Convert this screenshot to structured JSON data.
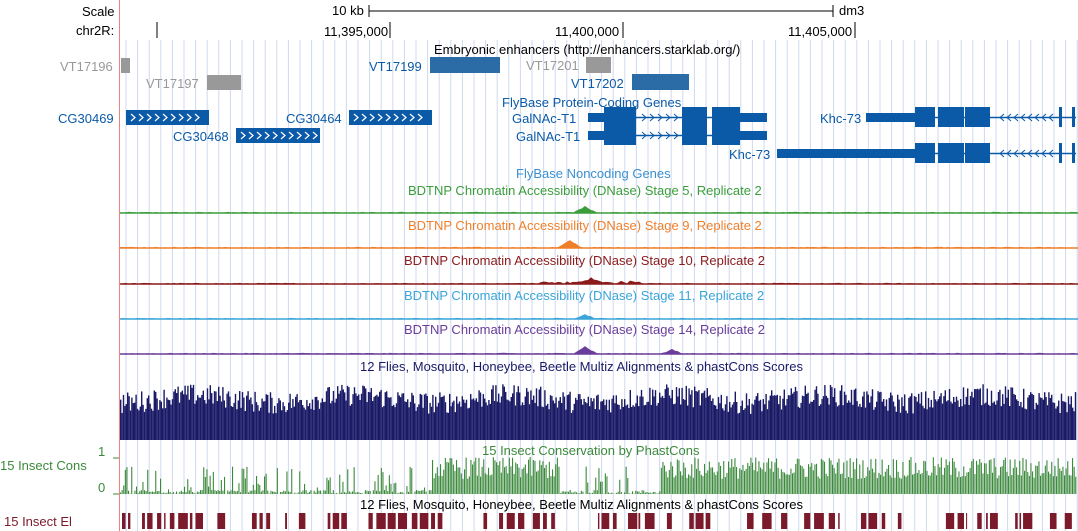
{
  "header": {
    "scale_label": "Scale",
    "chrom_label": "chr2R:",
    "scale_bar_text": "10 kb",
    "assembly": "dm3",
    "positions": [
      "11,395,000",
      "11,400,000",
      "11,405,000"
    ]
  },
  "tracks": {
    "enhancers": {
      "title": "Embryonic enhancers (http://enhancers.starklab.org/)",
      "items": [
        "VT17196",
        "VT17197",
        "VT17199",
        "VT17201",
        "VT17202"
      ]
    },
    "coding_genes": {
      "title": "FlyBase Protein-Coding Genes",
      "items": [
        "CG30469",
        "CG30468",
        "CG30464",
        "GalNAc-T1",
        "GalNAc-T1",
        "Khc-73",
        "Khc-73"
      ]
    },
    "noncoding_genes": {
      "title": "FlyBase Noncoding Genes"
    },
    "dnase": [
      {
        "title": "BDTNP Chromatin Accessibility (DNase) Stage 5, Replicate 2",
        "color": "#3a9e3a"
      },
      {
        "title": "BDTNP Chromatin Accessibility (DNase) Stage 9, Replicate 2",
        "color": "#f07f2a"
      },
      {
        "title": "BDTNP Chromatin Accessibility (DNase) Stage 10, Replicate 2",
        "color": "#8b1a1a"
      },
      {
        "title": "BDTNP Chromatin Accessibility (DNase) Stage 11, Replicate 2",
        "color": "#3aa5d8"
      },
      {
        "title": "BDTNP Chromatin Accessibility (DNase) Stage 14, Replicate 2",
        "color": "#6a3d9a"
      }
    ],
    "multiz": {
      "title": "12 Flies, Mosquito, Honeybee, Beetle Multiz Alignments & phastCons Scores"
    },
    "cons": {
      "title": "15 Insect Conservation by PhastCons",
      "side_label": "15 Insect Cons",
      "axis_max": "1",
      "axis_min": "0"
    },
    "multiz2": {
      "title": "12 Flies, Mosquito, Honeybee, Beetle Multiz Alignments & phastCons Scores"
    },
    "elements": {
      "side_label": "15 Insect El"
    }
  },
  "colors": {
    "gene": "#0a5aa8",
    "enhancer_highlight": "#2b6ca6",
    "enhancer_gray": "#999999",
    "multiz": "#1a1a66",
    "cons": "#3b8a3b",
    "elements": "#7b1a2a",
    "gridline": "#d0d8f0",
    "left_border": "#f08080"
  }
}
